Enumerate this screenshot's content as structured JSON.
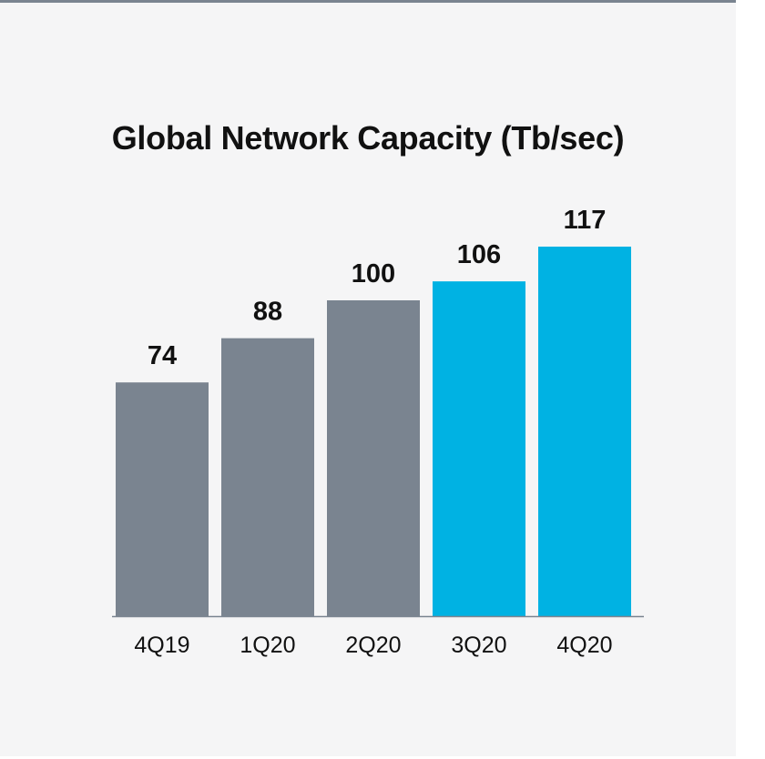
{
  "chart_data": {
    "type": "bar",
    "title": "Global Network Capacity (Tb/sec)",
    "categories": [
      "4Q19",
      "1Q20",
      "2Q20",
      "3Q20",
      "4Q20"
    ],
    "values": [
      74,
      88,
      100,
      106,
      117
    ],
    "bar_colors": [
      "#7a8490",
      "#7a8490",
      "#7a8490",
      "#00b2e3",
      "#00b2e3"
    ],
    "data_labels": [
      "74",
      "88",
      "100",
      "106",
      "117"
    ],
    "ylim": [
      0,
      117
    ],
    "grid": false,
    "legend": "none"
  },
  "colors": {
    "gray_bar": "#7a8490",
    "blue_bar": "#00b2e3",
    "background": "#f5f5f6",
    "axis_line": "#7a8490"
  }
}
